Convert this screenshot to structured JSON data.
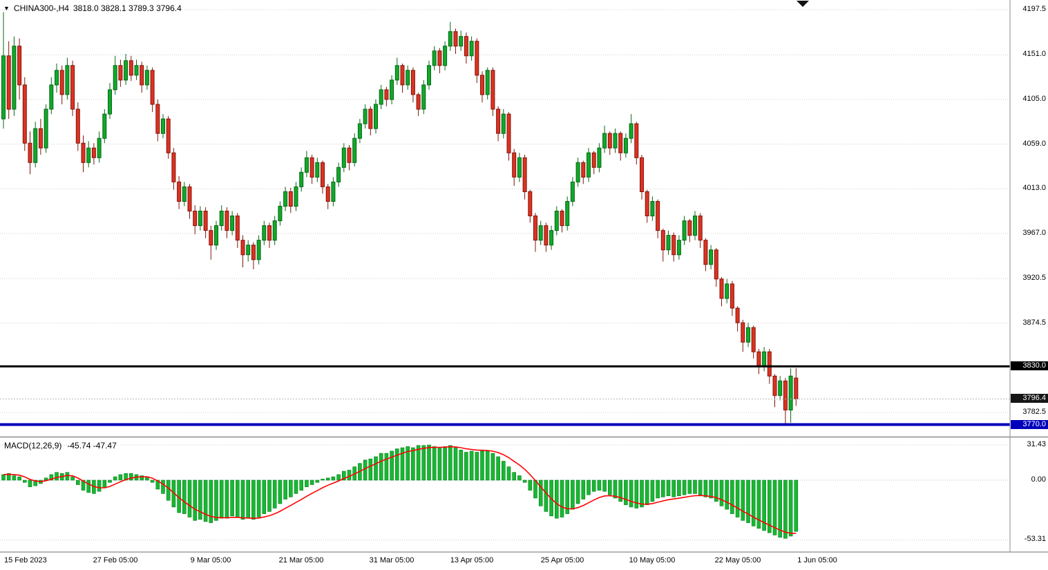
{
  "window": {
    "symbol_with_tf": "CHINA300-,H4",
    "ohlc_line": "3818.0 3828.1 3789.3 3796.4",
    "dropdown_icon": "▼"
  },
  "indicator": {
    "label": "MACD(12,26,9)",
    "values": "-45.74 -47.47"
  },
  "levels": {
    "black_line": 3830.0,
    "blue_line": 3770.0,
    "current_price": 3796.4
  },
  "colors": {
    "up_fill": "#10A929",
    "up_stroke": "#076616",
    "down_fill": "#DD3222",
    "down_stroke": "#801409",
    "hist_fill": "#17B832",
    "hist_stroke": "#0B7A1E",
    "signal": "#FF0000",
    "grid": "#CFCFCF",
    "level_black": "#000000",
    "level_blue": "#0000BB",
    "separator": "#8C8C8C",
    "background": "#FFFFFF"
  },
  "price_axis": {
    "ticks": [
      {
        "label": "4197.5",
        "value": 4197.5,
        "style": "plain"
      },
      {
        "label": "4151.0",
        "value": 4151.0,
        "style": "plain"
      },
      {
        "label": "4105.0",
        "value": 4105.0,
        "style": "plain"
      },
      {
        "label": "4059.0",
        "value": 4059.0,
        "style": "plain"
      },
      {
        "label": "4013.0",
        "value": 4013.0,
        "style": "plain"
      },
      {
        "label": "3967.0",
        "value": 3967.0,
        "style": "plain"
      },
      {
        "label": "3920.5",
        "value": 3920.5,
        "style": "plain"
      },
      {
        "label": "3874.5",
        "value": 3874.5,
        "style": "plain"
      },
      {
        "label": "3830.0",
        "value": 3830.0,
        "style": "black-tag"
      },
      {
        "label": "3796.4",
        "value": 3796.4,
        "style": "dark-tag"
      },
      {
        "label": "3782.5",
        "value": 3782.5,
        "style": "plain"
      },
      {
        "label": "3770.0",
        "value": 3770.0,
        "style": "blue-tag"
      }
    ]
  },
  "chart_data": [
    {
      "type": "candlestick",
      "title": "CHINA300-,H4",
      "timeframe": "H4",
      "y_range": [
        3759.0,
        4207.5
      ],
      "y_ticks": [
        4197.5,
        4151.0,
        4105.0,
        4059.0,
        4013.0,
        3967.0,
        3920.5,
        3874.5,
        3782.5
      ],
      "x_tick_labels": [
        "15 Feb 2023",
        "27 Feb 05:00",
        "9 Mar 05:00",
        "21 Mar 05:00",
        "31 Mar 05:00",
        "13 Apr 05:00",
        "25 Apr 05:00",
        "10 May 05:00",
        "22 May 05:00",
        "1 Jun 05:00"
      ],
      "x_tick_candle_index": [
        0,
        21,
        39,
        56,
        73,
        88,
        105,
        122,
        138,
        153
      ],
      "horizontal_lines": [
        {
          "price": 3830.0,
          "color": "black"
        },
        {
          "price": 3770.0,
          "color": "blue"
        }
      ],
      "last_ohlc": {
        "open": 3818.0,
        "high": 3828.1,
        "low": 3789.3,
        "close": 3796.4
      },
      "candles_ohlc": [
        [
          4085,
          4195,
          4075,
          4150
        ],
        [
          4150,
          4165,
          4085,
          4095
        ],
        [
          4095,
          4170,
          4088,
          4160
        ],
        [
          4160,
          4168,
          4105,
          4120
        ],
        [
          4120,
          4128,
          4052,
          4060
        ],
        [
          4060,
          4072,
          4028,
          4040
        ],
        [
          4040,
          4082,
          4035,
          4075
        ],
        [
          4075,
          4085,
          4048,
          4055
        ],
        [
          4055,
          4100,
          4050,
          4095
        ],
        [
          4095,
          4128,
          4090,
          4120
        ],
        [
          4120,
          4142,
          4112,
          4135
        ],
        [
          4135,
          4140,
          4100,
          4110
        ],
        [
          4110,
          4148,
          4105,
          4140
        ],
        [
          4140,
          4145,
          4088,
          4095
        ],
        [
          4095,
          4102,
          4052,
          4060
        ],
        [
          4060,
          4068,
          4030,
          4040
        ],
        [
          4040,
          4062,
          4035,
          4055
        ],
        [
          4055,
          4060,
          4038,
          4045
        ],
        [
          4045,
          4072,
          4040,
          4065
        ],
        [
          4065,
          4095,
          4060,
          4090
        ],
        [
          4090,
          4122,
          4085,
          4115
        ],
        [
          4115,
          4150,
          4110,
          4140
        ],
        [
          4140,
          4146,
          4118,
          4125
        ],
        [
          4125,
          4152,
          4120,
          4145
        ],
        [
          4145,
          4150,
          4124,
          4130
        ],
        [
          4130,
          4146,
          4125,
          4140
        ],
        [
          4140,
          4144,
          4112,
          4120
        ],
        [
          4120,
          4140,
          4115,
          4135
        ],
        [
          4135,
          4138,
          4092,
          4100
        ],
        [
          4100,
          4105,
          4062,
          4070
        ],
        [
          4070,
          4090,
          4065,
          4085
        ],
        [
          4085,
          4088,
          4044,
          4050
        ],
        [
          4050,
          4055,
          4012,
          4020
        ],
        [
          4020,
          4026,
          3992,
          4000
        ],
        [
          4000,
          4020,
          3995,
          4015
        ],
        [
          4015,
          4018,
          3982,
          3990
        ],
        [
          3990,
          3996,
          3966,
          3975
        ],
        [
          3975,
          3995,
          3970,
          3990
        ],
        [
          3990,
          3994,
          3962,
          3970
        ],
        [
          3970,
          3975,
          3940,
          3955
        ],
        [
          3955,
          3980,
          3950,
          3975
        ],
        [
          3975,
          3996,
          3970,
          3990
        ],
        [
          3990,
          3994,
          3962,
          3970
        ],
        [
          3970,
          3990,
          3965,
          3985
        ],
        [
          3985,
          3988,
          3952,
          3960
        ],
        [
          3960,
          3965,
          3932,
          3945
        ],
        [
          3945,
          3960,
          3938,
          3955
        ],
        [
          3955,
          3958,
          3930,
          3940
        ],
        [
          3940,
          3965,
          3935,
          3960
        ],
        [
          3960,
          3980,
          3955,
          3975
        ],
        [
          3975,
          3978,
          3952,
          3960
        ],
        [
          3960,
          3985,
          3955,
          3980
        ],
        [
          3980,
          4000,
          3975,
          3995
        ],
        [
          3995,
          4015,
          3990,
          4010
        ],
        [
          4010,
          4014,
          3988,
          3995
        ],
        [
          3995,
          4020,
          3990,
          4015
        ],
        [
          4015,
          4035,
          4010,
          4030
        ],
        [
          4030,
          4052,
          4025,
          4045
        ],
        [
          4045,
          4048,
          4018,
          4025
        ],
        [
          4025,
          4045,
          4020,
          4040
        ],
        [
          4040,
          4042,
          4008,
          4015
        ],
        [
          4015,
          4018,
          3992,
          4000
        ],
        [
          4000,
          4025,
          3995,
          4020
        ],
        [
          4020,
          4040,
          4015,
          4035
        ],
        [
          4035,
          4060,
          4030,
          4055
        ],
        [
          4055,
          4058,
          4032,
          4040
        ],
        [
          4040,
          4070,
          4036,
          4065
        ],
        [
          4065,
          4085,
          4060,
          4080
        ],
        [
          4080,
          4100,
          4075,
          4095
        ],
        [
          4095,
          4098,
          4068,
          4075
        ],
        [
          4075,
          4105,
          4070,
          4100
        ],
        [
          4100,
          4120,
          4095,
          4115
        ],
        [
          4115,
          4118,
          4098,
          4105
        ],
        [
          4105,
          4130,
          4100,
          4125
        ],
        [
          4125,
          4148,
          4120,
          4140
        ],
        [
          4140,
          4142,
          4112,
          4120
        ],
        [
          4120,
          4140,
          4115,
          4135
        ],
        [
          4135,
          4138,
          4102,
          4110
        ],
        [
          4110,
          4112,
          4088,
          4095
        ],
        [
          4095,
          4125,
          4090,
          4120
        ],
        [
          4120,
          4145,
          4115,
          4140
        ],
        [
          4140,
          4160,
          4135,
          4155
        ],
        [
          4155,
          4158,
          4132,
          4140
        ],
        [
          4140,
          4165,
          4135,
          4160
        ],
        [
          4160,
          4185,
          4155,
          4175
        ],
        [
          4175,
          4178,
          4152,
          4160
        ],
        [
          4160,
          4176,
          4155,
          4170
        ],
        [
          4170,
          4174,
          4142,
          4150
        ],
        [
          4150,
          4170,
          4145,
          4165
        ],
        [
          4165,
          4168,
          4122,
          4130
        ],
        [
          4130,
          4134,
          4102,
          4110
        ],
        [
          4110,
          4138,
          4105,
          4135
        ],
        [
          4135,
          4138,
          4088,
          4095
        ],
        [
          4095,
          4098,
          4062,
          4070
        ],
        [
          4070,
          4095,
          4065,
          4090
        ],
        [
          4090,
          4092,
          4042,
          4050
        ],
        [
          4050,
          4054,
          4016,
          4025
        ],
        [
          4025,
          4050,
          4020,
          4045
        ],
        [
          4045,
          4048,
          4002,
          4010
        ],
        [
          4010,
          4012,
          3978,
          3985
        ],
        [
          3985,
          3988,
          3948,
          3960
        ],
        [
          3960,
          3980,
          3955,
          3975
        ],
        [
          3975,
          3978,
          3948,
          3955
        ],
        [
          3955,
          3975,
          3950,
          3970
        ],
        [
          3970,
          3995,
          3965,
          3990
        ],
        [
          3990,
          3992,
          3968,
          3975
        ],
        [
          3975,
          4005,
          3970,
          4000
        ],
        [
          4000,
          4025,
          3995,
          4020
        ],
        [
          4020,
          4045,
          4015,
          4040
        ],
        [
          4040,
          4042,
          4018,
          4025
        ],
        [
          4025,
          4055,
          4020,
          4050
        ],
        [
          4050,
          4052,
          4028,
          4035
        ],
        [
          4035,
          4060,
          4030,
          4055
        ],
        [
          4055,
          4078,
          4050,
          4070
        ],
        [
          4070,
          4072,
          4048,
          4055
        ],
        [
          4055,
          4075,
          4050,
          4070
        ],
        [
          4070,
          4072,
          4042,
          4050
        ],
        [
          4050,
          4070,
          4045,
          4065
        ],
        [
          4065,
          4090,
          4060,
          4080
        ],
        [
          4080,
          4082,
          4038,
          4045
        ],
        [
          4045,
          4048,
          4002,
          4010
        ],
        [
          4010,
          4012,
          3978,
          3985
        ],
        [
          3985,
          4005,
          3980,
          4000
        ],
        [
          4000,
          4002,
          3962,
          3970
        ],
        [
          3970,
          3972,
          3938,
          3950
        ],
        [
          3950,
          3970,
          3945,
          3965
        ],
        [
          3965,
          3968,
          3938,
          3945
        ],
        [
          3945,
          3965,
          3940,
          3960
        ],
        [
          3960,
          3985,
          3955,
          3980
        ],
        [
          3980,
          3982,
          3958,
          3965
        ],
        [
          3965,
          3990,
          3960,
          3985
        ],
        [
          3985,
          3988,
          3952,
          3960
        ],
        [
          3960,
          3962,
          3928,
          3935
        ],
        [
          3935,
          3955,
          3930,
          3950
        ],
        [
          3950,
          3952,
          3912,
          3920
        ],
        [
          3920,
          3922,
          3892,
          3900
        ],
        [
          3900,
          3920,
          3895,
          3915
        ],
        [
          3915,
          3918,
          3882,
          3890
        ],
        [
          3890,
          3892,
          3866,
          3875
        ],
        [
          3875,
          3878,
          3845,
          3855
        ],
        [
          3855,
          3875,
          3850,
          3870
        ],
        [
          3870,
          3872,
          3838,
          3845
        ],
        [
          3845,
          3848,
          3822,
          3830
        ],
        [
          3830,
          3850,
          3825,
          3845
        ],
        [
          3845,
          3848,
          3812,
          3820
        ],
        [
          3820,
          3822,
          3788,
          3800
        ],
        [
          3800,
          3820,
          3795,
          3815
        ],
        [
          3815,
          3818,
          3770,
          3785
        ],
        [
          3785,
          3828,
          3772,
          3820
        ],
        [
          3818,
          3828.1,
          3789.3,
          3796.4
        ]
      ]
    },
    {
      "type": "bar",
      "title": "MACD(12,26,9)",
      "macd_value": -45.74,
      "signal_value": -47.47,
      "y_ticks": [
        31.43,
        0,
        -53.31
      ],
      "y_tick_labels": [
        "31.43",
        "0.00",
        "-53.31"
      ],
      "y_range": [
        -60,
        37
      ],
      "histogram": [
        5,
        6,
        4,
        3,
        -2,
        -6,
        -5,
        -3,
        2,
        5,
        7,
        6,
        7,
        3,
        -4,
        -9,
        -11,
        -12,
        -10,
        -7,
        -2,
        3,
        5,
        6,
        6,
        5,
        4,
        3,
        -2,
        -8,
        -12,
        -18,
        -24,
        -29,
        -30,
        -33,
        -36,
        -35,
        -37,
        -38,
        -36,
        -34,
        -34,
        -32,
        -33,
        -35,
        -34,
        -35,
        -33,
        -30,
        -28,
        -25,
        -21,
        -17,
        -15,
        -12,
        -9,
        -6,
        -4,
        -2,
        1,
        2,
        3,
        5,
        8,
        9,
        12,
        15,
        18,
        19,
        21,
        24,
        24,
        26,
        28,
        29,
        30,
        29,
        31,
        31,
        31.4,
        30,
        29,
        30,
        31,
        29,
        27,
        25,
        26,
        25,
        26,
        26,
        24,
        21,
        17,
        12,
        7,
        4,
        -2,
        -9,
        -16,
        -23,
        -28,
        -32,
        -34,
        -33,
        -30,
        -26,
        -21,
        -17,
        -13,
        -10,
        -9,
        -10,
        -13,
        -16,
        -19,
        -22,
        -24,
        -25,
        -24,
        -22,
        -19,
        -16,
        -15,
        -14,
        -15,
        -14,
        -13,
        -12,
        -12,
        -13,
        -15,
        -16,
        -19,
        -23,
        -26,
        -30,
        -33,
        -36,
        -38,
        -41,
        -43,
        -45,
        -47,
        -49,
        -51,
        -52,
        -50,
        -45.74
      ],
      "signal": [
        5,
        5.3,
        5,
        4.5,
        2.9,
        0.7,
        -0.7,
        -1.3,
        -0.5,
        0.9,
        2.4,
        3.3,
        4.2,
        3.9,
        1.9,
        -0.8,
        -3.4,
        -5.6,
        -6.7,
        -6.8,
        -5.6,
        -3.5,
        -1.4,
        0.5,
        1.9,
        2.7,
        3,
        3,
        1.8,
        -0.7,
        -3.5,
        -7.1,
        -11.3,
        -15.7,
        -19.3,
        -22.7,
        -26,
        -28.3,
        -30.5,
        -32.4,
        -33.3,
        -33.5,
        -33.6,
        -33.2,
        -33.2,
        -33.7,
        -33.8,
        -34.1,
        -33.8,
        -32.9,
        -31.7,
        -30,
        -27.8,
        -25.1,
        -22.6,
        -19.9,
        -17.2,
        -14.4,
        -11.8,
        -9.3,
        -6.7,
        -4.5,
        -2.6,
        -0.7,
        1.5,
        3.4,
        5.6,
        7.9,
        10.4,
        12.6,
        14.7,
        17,
        18.8,
        20.6,
        22.4,
        24.1,
        25.6,
        26.4,
        27.6,
        28.4,
        29.2,
        29.4,
        29.3,
        29.5,
        29.9,
        29.7,
        29,
        28,
        27.5,
        26.9,
        26.7,
        26.5,
        25.9,
        24.7,
        22.8,
        20.1,
        16.8,
        13.6,
        9.7,
        5,
        -0.3,
        -6,
        -11.5,
        -16.6,
        -21,
        -24,
        -25.5,
        -25.6,
        -24.5,
        -22.6,
        -20.2,
        -17.7,
        -15.5,
        -14.1,
        -13.8,
        -14.4,
        -15.6,
        -17.2,
        -18.9,
        -20.4,
        -21.3,
        -21.5,
        -20.9,
        -19.7,
        -18.5,
        -17.4,
        -16.8,
        -16.1,
        -15.3,
        -14.5,
        -13.9,
        -13.7,
        -14,
        -14.5,
        -15.6,
        -17.5,
        -19.6,
        -22.2,
        -24.9,
        -27.7,
        -30.3,
        -33,
        -35.5,
        -37.9,
        -40.2,
        -42.4,
        -44.6,
        -46.5,
        -47.4,
        -47.47
      ]
    }
  ]
}
